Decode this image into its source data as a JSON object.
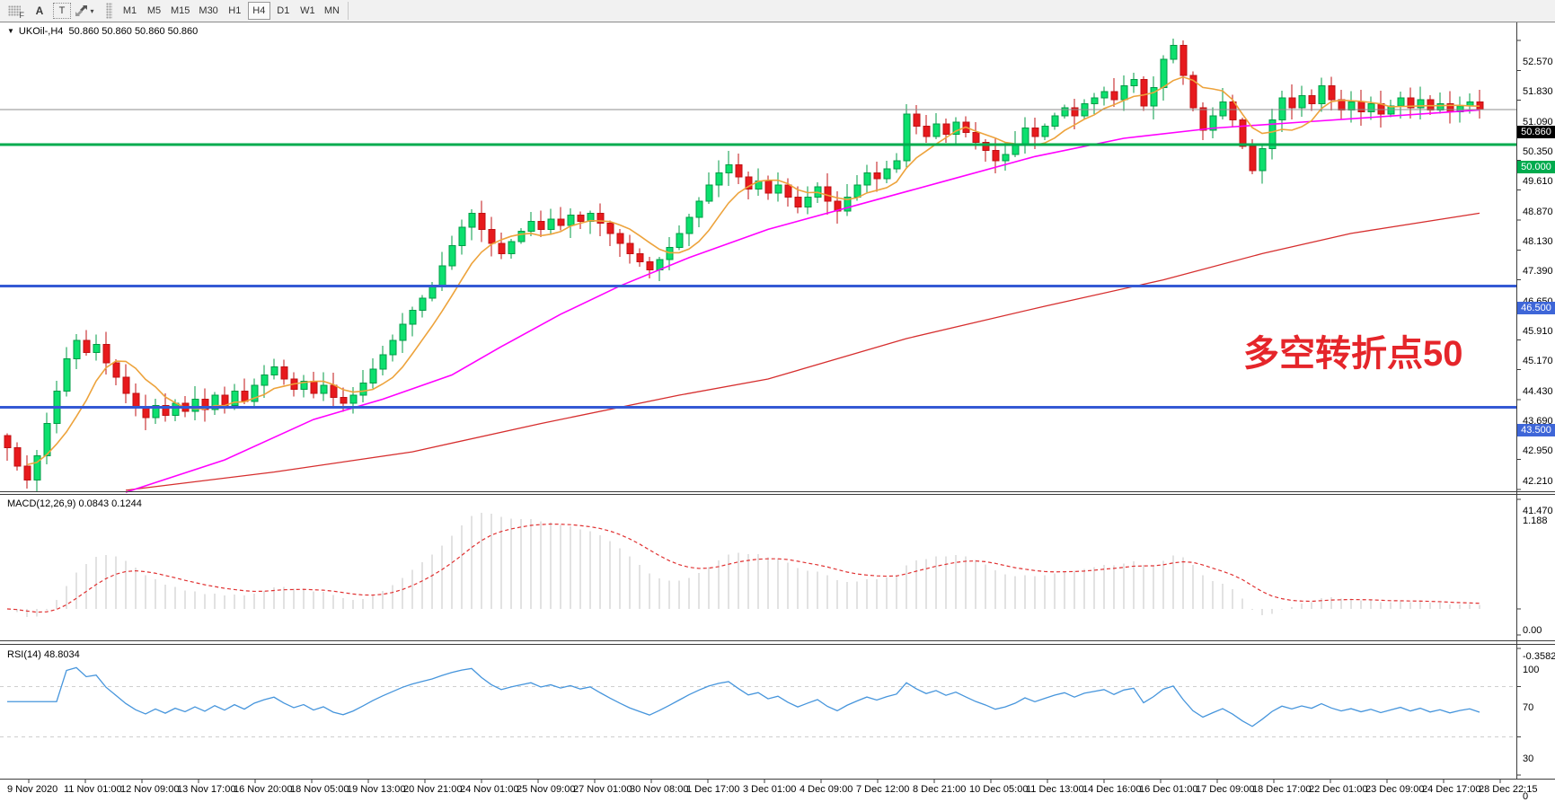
{
  "toolbar": {
    "tools": [
      {
        "name": "fibonacci-tool",
        "glyph": "F"
      },
      {
        "name": "text-tool",
        "glyph": "A"
      },
      {
        "name": "text-label-tool",
        "glyph": "T"
      },
      {
        "name": "arrows-tool",
        "glyph": "arrows"
      }
    ],
    "timeframes": [
      "M1",
      "M5",
      "M15",
      "M30",
      "H1",
      "H4",
      "D1",
      "W1",
      "MN"
    ],
    "active_timeframe": "H4"
  },
  "chart": {
    "title": "UKOil-,H4  50.860 50.860 50.860 50.860",
    "symbol": "UKOil-",
    "period": "H4",
    "annotation": {
      "text": "多空转折点50",
      "color": "#e5252a"
    },
    "price_axis_values": [
      52.57,
      51.83,
      51.09,
      50.35,
      49.61,
      48.87,
      48.13,
      47.39,
      46.65,
      45.91,
      45.17,
      44.43,
      43.69,
      42.95,
      42.21,
      41.47
    ],
    "badges": [
      {
        "text": "50.860",
        "price": 50.86,
        "bg": "#000000"
      },
      {
        "text": "50.000",
        "price": 50.0,
        "bg": "#00AB4E"
      },
      {
        "text": "46.500",
        "price": 46.5,
        "bg": "#3E66D8"
      },
      {
        "text": "43.500",
        "price": 43.5,
        "bg": "#3E66D8"
      }
    ],
    "hlines": [
      {
        "price": 50.86,
        "color": "#8c8c8c",
        "w": 1
      },
      {
        "price": 50.0,
        "color": "#00AB4E",
        "w": 3
      },
      {
        "price": 46.5,
        "color": "#3459D4",
        "w": 3
      },
      {
        "price": 43.5,
        "color": "#3459D4",
        "w": 3
      }
    ],
    "colors": {
      "bull": "#0ce06e",
      "bull_stroke": "#009b45",
      "bear": "#e71a1d",
      "bear_stroke": "#c01013",
      "ma_orange": "#eda33c",
      "ma_magenta": "#ff00ff",
      "ma_red": "#d62e2e",
      "macd_hist": "#c6c6c6",
      "macd_signal": "#e03131",
      "rsi_line": "#4695dc",
      "rsi_level": "#cfcfcf",
      "border": "#3c3c3c"
    }
  },
  "chart_data": {
    "type": "candlestick",
    "symbol": "UKOil-",
    "timeframe": "H4",
    "ylim": [
      41.47,
      52.57
    ],
    "first_open": 42.8,
    "closes": [
      42.5,
      42.05,
      41.7,
      42.3,
      43.1,
      43.9,
      44.7,
      45.15,
      44.85,
      45.05,
      44.6,
      44.25,
      43.85,
      43.5,
      43.25,
      43.55,
      43.3,
      43.6,
      43.4,
      43.7,
      43.45,
      43.8,
      43.55,
      43.9,
      43.65,
      44.05,
      44.3,
      44.5,
      44.2,
      43.95,
      44.15,
      43.85,
      44.05,
      43.75,
      43.6,
      43.8,
      44.1,
      44.45,
      44.8,
      45.15,
      45.55,
      45.9,
      46.2,
      46.5,
      47.0,
      47.5,
      47.95,
      48.3,
      47.9,
      47.55,
      47.3,
      47.6,
      47.85,
      48.1,
      47.9,
      48.15,
      48.0,
      48.25,
      48.1,
      48.3,
      48.05,
      47.8,
      47.55,
      47.3,
      47.1,
      46.9,
      47.15,
      47.45,
      47.8,
      48.2,
      48.6,
      49.0,
      49.3,
      49.5,
      49.2,
      48.9,
      49.1,
      48.8,
      49.0,
      48.7,
      48.45,
      48.7,
      48.95,
      48.6,
      48.35,
      48.7,
      49.0,
      49.3,
      49.15,
      49.4,
      49.6,
      50.75,
      50.45,
      50.2,
      50.5,
      50.25,
      50.55,
      50.3,
      50.05,
      49.85,
      49.6,
      49.75,
      50.0,
      50.4,
      50.2,
      50.45,
      50.7,
      50.9,
      50.7,
      51.0,
      51.15,
      51.3,
      51.1,
      51.45,
      51.6,
      50.95,
      51.4,
      52.1,
      52.45,
      51.7,
      50.9,
      50.35,
      50.7,
      51.05,
      50.6,
      49.95,
      49.35,
      49.9,
      50.6,
      51.15,
      50.9,
      51.2,
      51.0,
      51.45,
      51.1,
      50.85,
      51.05,
      50.8,
      51.0,
      50.75,
      50.95,
      51.15,
      50.9,
      51.1,
      50.85,
      51.0,
      50.8,
      50.95,
      51.05,
      50.86
    ],
    "ma_red_waypoints": [
      [
        12,
        41.45
      ],
      [
        27,
        41.9
      ],
      [
        41,
        42.4
      ],
      [
        54,
        43.1
      ],
      [
        68,
        43.8
      ],
      [
        77,
        44.2
      ],
      [
        91,
        45.2
      ],
      [
        105,
        46.0
      ],
      [
        117,
        46.65
      ],
      [
        127,
        47.3
      ],
      [
        136,
        47.8
      ],
      [
        149,
        48.3
      ]
    ],
    "ma_magenta_waypoints": [
      [
        12,
        41.4
      ],
      [
        22,
        42.2
      ],
      [
        31,
        43.2
      ],
      [
        38,
        43.7
      ],
      [
        45,
        44.3
      ],
      [
        50,
        45.0
      ],
      [
        56,
        45.8
      ],
      [
        62,
        46.5
      ],
      [
        69,
        47.2
      ],
      [
        77,
        47.9
      ],
      [
        86,
        48.5
      ],
      [
        95,
        49.1
      ],
      [
        104,
        49.7
      ],
      [
        113,
        50.15
      ],
      [
        122,
        50.4
      ],
      [
        131,
        50.55
      ],
      [
        140,
        50.7
      ],
      [
        149,
        50.85
      ]
    ],
    "ma_orange_period": 7
  },
  "macd": {
    "label": "MACD(12,26,9) 0.0843 0.1244",
    "params": {
      "fast": 12,
      "slow": 26,
      "signal": 9
    },
    "current_main": 0.0843,
    "current_signal": 0.1244,
    "axis": [
      {
        "text": "1.188",
        "v": 1.188
      },
      {
        "text": "0.00",
        "v": 0.0
      },
      {
        "text": "-0.3582",
        "v": -0.3582
      }
    ]
  },
  "rsi": {
    "label": "RSI(14) 48.8034",
    "period": 14,
    "current": 48.8034,
    "levels": [
      70,
      30
    ],
    "axis": [
      {
        "text": "100",
        "v": 100
      },
      {
        "text": "70",
        "v": 70
      },
      {
        "text": "30",
        "v": 30
      },
      {
        "text": "0",
        "v": 0
      }
    ]
  },
  "time_axis": {
    "labels": [
      "9 Nov 2020",
      "11 Nov 01:00",
      "12 Nov 09:00",
      "13 Nov 17:00",
      "16 Nov 20:00",
      "18 Nov 05:00",
      "19 Nov 13:00",
      "20 Nov 21:00",
      "24 Nov 01:00",
      "25 Nov 09:00",
      "27 Nov 01:00",
      "30 Nov 08:00",
      "1 Dec 17:00",
      "3 Dec 01:00",
      "4 Dec 09:00",
      "7 Dec 12:00",
      "8 Dec 21:00",
      "10 Dec 05:00",
      "11 Dec 13:00",
      "14 Dec 16:00",
      "16 Dec 01:00",
      "17 Dec 09:00",
      "18 Dec 17:00",
      "22 Dec 01:00",
      "23 Dec 09:00",
      "24 Dec 17:00",
      "28 Dec 22:15"
    ]
  }
}
